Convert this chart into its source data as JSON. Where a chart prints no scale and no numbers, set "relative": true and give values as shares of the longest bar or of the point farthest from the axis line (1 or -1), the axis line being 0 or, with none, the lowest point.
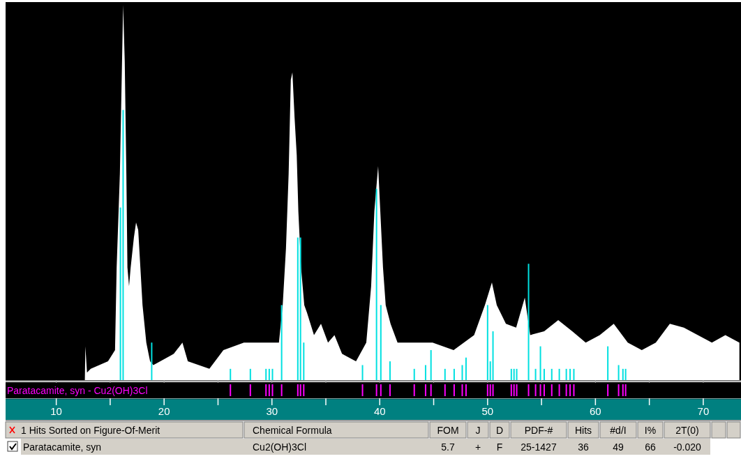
{
  "chart_data": {
    "type": "area",
    "relative": true,
    "xlim": [
      5.3,
      73.5
    ],
    "xticks": [
      10,
      {
        "value": 15,
        "label": null
      },
      20,
      {
        "value": 25,
        "label": null
      },
      30,
      {
        "value": 35,
        "label": null
      },
      40,
      {
        "value": 45,
        "label": null
      },
      50,
      {
        "value": 55,
        "label": null
      },
      60,
      {
        "value": 65,
        "label": null
      },
      70
    ],
    "series": [
      {
        "color": "#ffffff",
        "x": [
          5.3,
          12.65,
          12.7,
          12.85,
          13.2,
          14.8,
          15.45,
          15.6,
          15.9,
          16.1,
          16.2,
          16.35,
          16.5,
          16.6,
          16.75,
          16.9,
          17.2,
          17.4,
          17.6,
          17.8,
          18.0,
          18.35,
          18.7,
          19.0,
          19.65,
          20.9,
          21.7,
          22.2,
          24.2,
          25.5,
          27.4,
          29.35,
          30.65,
          31.0,
          31.3,
          31.55,
          31.75,
          31.9,
          32.1,
          32.3,
          32.45,
          32.7,
          33.0,
          33.25,
          33.9,
          34.55,
          35.2,
          35.8,
          36.5,
          37.8,
          38.75,
          39.2,
          39.5,
          39.85,
          40.05,
          40.3,
          40.55,
          41.0,
          41.65,
          42.95,
          44.9,
          46.85,
          48.75,
          49.75,
          50.4,
          50.85,
          51.7,
          52.65,
          53.45,
          53.95,
          55.25,
          56.55,
          57.85,
          59.1,
          60.4,
          61.7,
          63.0,
          64.3,
          65.6,
          66.9,
          68.2,
          69.5,
          70.8,
          72.05,
          73.35
        ],
        "values": [
          0,
          0,
          0.09,
          0.02,
          0.03,
          0.05,
          0.08,
          0.3,
          0.55,
          0.85,
          1,
          0.85,
          0.55,
          0.3,
          0.25,
          0.3,
          0.38,
          0.42,
          0.4,
          0.3,
          0.2,
          0.1,
          0.05,
          0.04,
          0.05,
          0.07,
          0.1,
          0.05,
          0.03,
          0.08,
          0.1,
          0.1,
          0.1,
          0.2,
          0.35,
          0.55,
          0.8,
          0.82,
          0.7,
          0.6,
          0.45,
          0.3,
          0.2,
          0.18,
          0.12,
          0.15,
          0.1,
          0.12,
          0.07,
          0.05,
          0.1,
          0.25,
          0.45,
          0.57,
          0.45,
          0.3,
          0.2,
          0.15,
          0.1,
          0.1,
          0.1,
          0.08,
          0.12,
          0.2,
          0.26,
          0.2,
          0.15,
          0.14,
          0.22,
          0.12,
          0.13,
          0.16,
          0.13,
          0.1,
          0.12,
          0.15,
          0.1,
          0.08,
          0.1,
          0.15,
          0.14,
          0.12,
          0.1,
          0.12,
          0.1
        ]
      },
      {
        "type": "bar",
        "name": "Paratacamite, syn - Cu2(OH)3Cl",
        "color": "#00e0e0",
        "x": [
          15.95,
          16.2,
          18.85,
          26.15,
          28.0,
          29.45,
          29.75,
          30.05,
          30.9,
          32.4,
          32.65,
          32.95,
          38.4,
          39.7,
          40.1,
          40.95,
          43.2,
          44.25,
          44.75,
          46.05,
          46.9,
          47.65,
          48.0,
          50.0,
          50.25,
          50.5,
          52.2,
          52.45,
          52.7,
          53.8,
          54.45,
          54.9,
          55.25,
          55.95,
          56.65,
          57.3,
          57.65,
          58.0,
          61.15,
          62.15,
          62.55,
          62.8
        ],
        "values": [
          0.46,
          0.72,
          0.1,
          0.03,
          0.03,
          0.03,
          0.03,
          0.03,
          0.2,
          0.38,
          0.38,
          0.1,
          0.04,
          0.51,
          0.2,
          0.05,
          0.03,
          0.04,
          0.08,
          0.03,
          0.03,
          0.04,
          0.06,
          0.2,
          0.05,
          0.13,
          0.03,
          0.03,
          0.03,
          0.31,
          0.03,
          0.09,
          0.03,
          0.03,
          0.03,
          0.03,
          0.03,
          0.03,
          0.09,
          0.04,
          0.03,
          0.03
        ]
      }
    ],
    "annotations": [
      "1 Hits Sorted on Figure-Of-Merit",
      "Chemical Formula",
      "FOM",
      "J",
      "D",
      "PDF-#",
      "Hits",
      "#d/I",
      "I%",
      "2T(0)",
      "Paratacamite, syn",
      "Cu2(OH)3Cl",
      "5.7",
      "+",
      "F",
      "25-1427",
      "36",
      "49",
      "66",
      "-0.020"
    ]
  }
}
